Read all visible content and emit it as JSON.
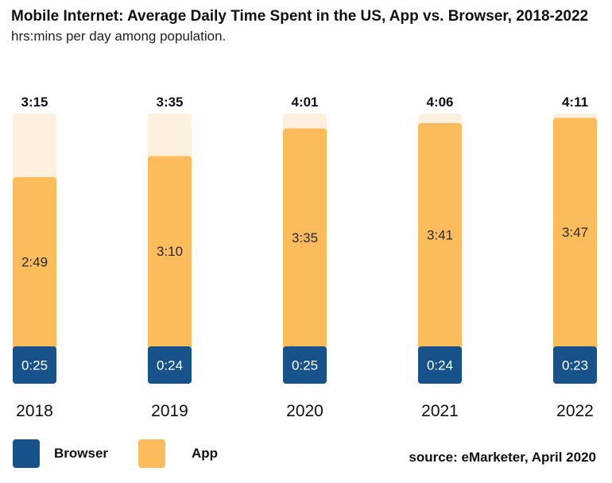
{
  "title": "Mobile Internet: Average Daily Time Spent in the US, App vs. Browser, 2018-2022",
  "subtitle": "hrs:mins per day among population.",
  "source": "source: eMarketer, April 2020",
  "colors": {
    "browser": "#17528A",
    "app": "#FDBC5C",
    "total_bg": "#FEF0DE"
  },
  "chart_data": {
    "type": "bar",
    "categories": [
      "2018",
      "2019",
      "2020",
      "2021",
      "2022"
    ],
    "series": [
      {
        "name": "Browser",
        "values": [
          "0:25",
          "0:24",
          "0:25",
          "0:24",
          "0:23"
        ]
      },
      {
        "name": "App",
        "values": [
          "2:49",
          "3:10",
          "3:35",
          "3:41",
          "3:47"
        ]
      }
    ],
    "totals": [
      "3:15",
      "3:35",
      "4:01",
      "4:06",
      "4:11"
    ],
    "unit": "hrs:mins per day"
  },
  "legend": [
    {
      "label": "Browser",
      "color": "#17528A"
    },
    {
      "label": "App",
      "color": "#FDBC5C"
    }
  ]
}
